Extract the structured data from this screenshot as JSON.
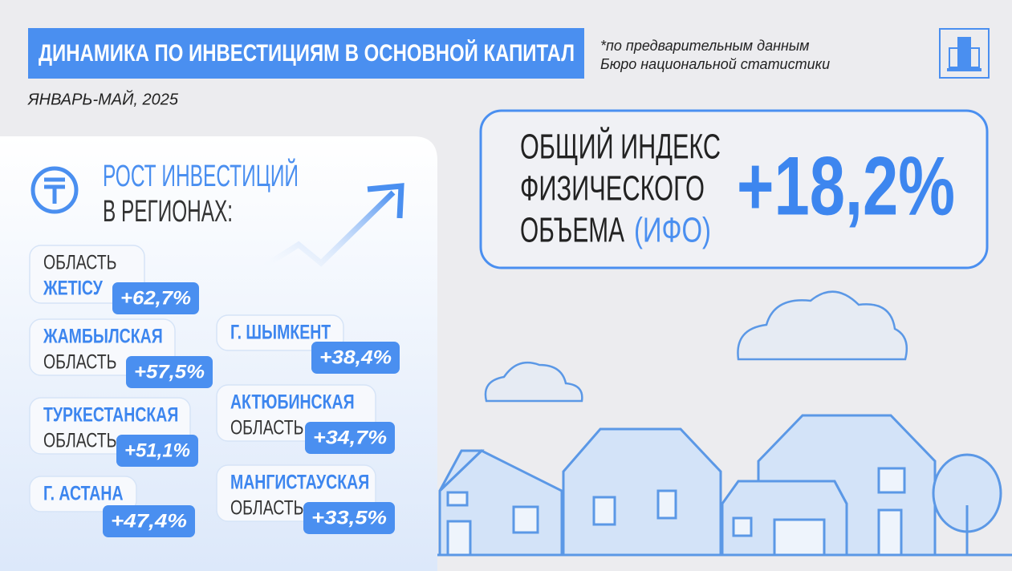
{
  "header": {
    "title": "ДИНАМИКА ПО ИНВЕСТИЦИЯМ В ОСНОВНОЙ КАПИТАЛ",
    "note": [
      "*по предварительным данным",
      "Бюро национальной статистики"
    ],
    "period": "ЯНВАРЬ-МАЙ, 2025"
  },
  "index": {
    "lines": [
      "ОБЩИЙ ИНДЕКС",
      "ФИЗИЧЕСКОГО",
      "ОБЪЕМА"
    ],
    "abbr": "(ИФО)",
    "value": "+18,2%"
  },
  "regions": {
    "heading": [
      "РОСТ ИНВЕСТИЦИЙ",
      "В РЕГИОНАХ:"
    ],
    "items": [
      {
        "lines": [
          "ОБЛАСТЬ",
          "ЖЕТІСУ"
        ],
        "value": "+62,7%"
      },
      {
        "lines": [
          "ЖАМБЫЛСКАЯ",
          "ОБЛАСТЬ"
        ],
        "value": "+57,5%"
      },
      {
        "lines": [
          "ТУРКЕСТАНСКАЯ",
          "ОБЛАСТЬ"
        ],
        "value": "+51,1%"
      },
      {
        "lines": [
          "Г. АСТАНА"
        ],
        "value": "+47,4%"
      },
      {
        "lines": [
          "Г. ШЫМКЕНТ"
        ],
        "value": "+38,4%"
      },
      {
        "lines": [
          "АКТЮБИНСКАЯ",
          "ОБЛАСТЬ"
        ],
        "value": "+34,7%"
      },
      {
        "lines": [
          "МАНГИСТАУСКАЯ",
          "ОБЛАСТЬ"
        ],
        "value": "+33,5%"
      }
    ]
  }
}
